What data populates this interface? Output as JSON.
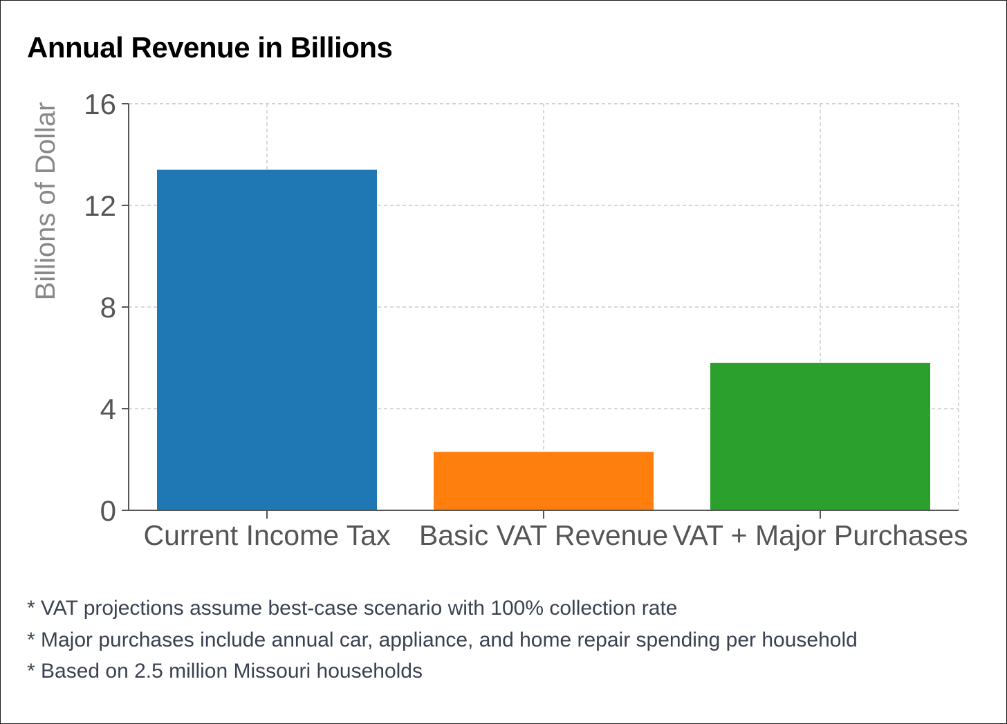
{
  "title": "Annual Revenue in Billions",
  "chart_data": {
    "type": "bar",
    "title": "Annual Revenue in Billions",
    "xlabel": "",
    "ylabel": "Billions of Dollar",
    "categories": [
      "Current Income Tax",
      "Basic VAT Revenue",
      "VAT + Major Purchases"
    ],
    "values": [
      13.4,
      2.3,
      5.8
    ],
    "colors": [
      "#1f77b4",
      "#ff7f0e",
      "#2ca02c"
    ],
    "ylim": [
      0,
      16
    ],
    "yticks": [
      "0",
      "4",
      "8",
      "12",
      "16"
    ],
    "grid": true,
    "legend": "none"
  },
  "footnotes": [
    "* VAT projections assume best-case scenario with 100% collection rate",
    "* Major purchases include annual car, appliance, and home repair spending per household",
    "* Based on 2.5 million Missouri households"
  ],
  "colors": {
    "grid": "#cccccc",
    "axis": "#555555",
    "tick_text": "#555555",
    "ylabel_text": "#888888"
  }
}
